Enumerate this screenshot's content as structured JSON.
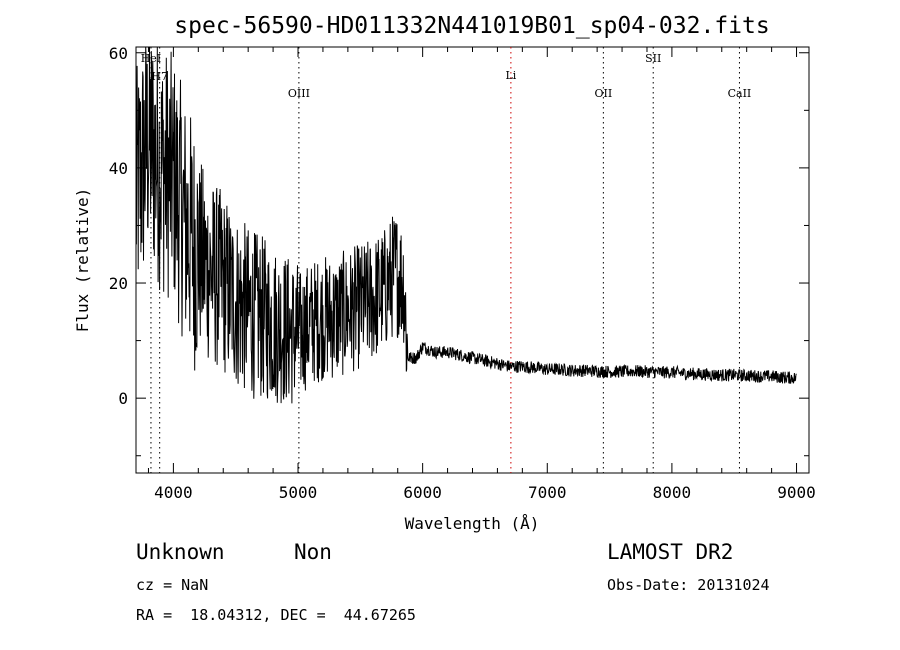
{
  "chart_data": {
    "type": "line",
    "title": "spec-56590-HD011332N441019B01_sp04-032.fits",
    "xlabel": "Wavelength (Å)",
    "ylabel": "Flux (relative)",
    "xlim": [
      3700,
      9100
    ],
    "ylim": [
      -13,
      61
    ],
    "x_ticks": [
      4000,
      5000,
      6000,
      7000,
      8000,
      9000
    ],
    "y_ticks": [
      0,
      20,
      40,
      60
    ],
    "grid": false,
    "series": [
      {
        "color": "#000000",
        "x": [
          3700,
          3800,
          3900,
          4000,
          4100,
          4200,
          4300,
          4400,
          4500,
          4600,
          4700,
          4800,
          4900,
          5000,
          5100,
          5200,
          5300,
          5400,
          5500,
          5600,
          5700,
          5780,
          5850,
          5880,
          5950,
          6000,
          6100,
          6200,
          6300,
          6400,
          6500,
          6600,
          6700,
          6800,
          6900,
          7000,
          7100,
          7200,
          7300,
          7400,
          7500,
          7600,
          7700,
          7800,
          7900,
          8000,
          8100,
          8200,
          8300,
          8400,
          8500,
          8600,
          8700,
          8800,
          8900,
          9000
        ],
        "y": [
          35,
          45,
          40,
          38,
          30,
          25,
          22,
          20,
          17,
          15,
          14,
          13,
          12,
          11,
          13,
          14,
          14,
          15,
          16,
          17,
          19,
          22,
          20,
          7,
          7,
          9,
          8,
          8,
          7.5,
          7,
          6.5,
          6,
          5.5,
          5.5,
          5.3,
          5,
          5,
          4.8,
          4.8,
          4.7,
          4.6,
          4.6,
          4.7,
          4.6,
          4.5,
          4.5,
          4.3,
          4.2,
          4.1,
          4.0,
          4.0,
          3.9,
          3.8,
          3.8,
          3.6,
          3.5
        ]
      }
    ],
    "lines": [
      {
        "label": "HeI",
        "x": 3820,
        "color": "#000000"
      },
      {
        "label": "H7",
        "x": 3890,
        "color": "#000000"
      },
      {
        "label": "OIII",
        "x": 5007,
        "color": "#000000"
      },
      {
        "label": "Li",
        "x": 6708,
        "color": "#cc0000"
      },
      {
        "label": "OII",
        "x": 7450,
        "color": "#000000"
      },
      {
        "label": "SII",
        "x": 7850,
        "color": "#000000"
      },
      {
        "label": "CaII",
        "x": 8542,
        "color": "#000000"
      }
    ]
  },
  "info": {
    "class": "Unknown",
    "subclass": "Non",
    "survey": "LAMOST DR2",
    "cz": "cz = NaN",
    "obs_date": "Obs-Date: 20131024",
    "coords": "RA =  18.04312, DEC =  44.67265"
  }
}
